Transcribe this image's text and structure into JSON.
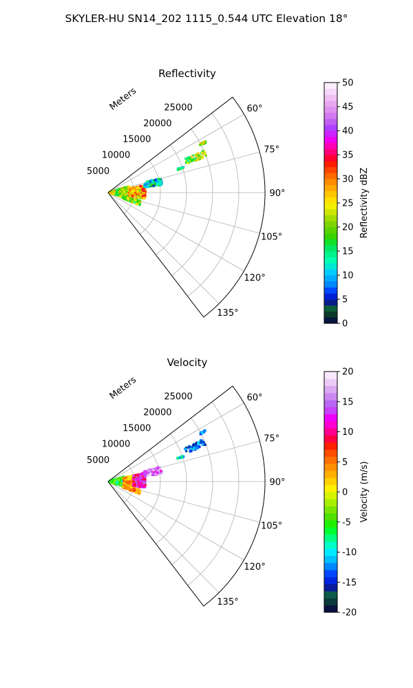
{
  "suptitle": "SKYLER-HU  SN14_202  1115_0.544 UTC Elevation 18°",
  "chart_data": [
    {
      "type": "heatmap",
      "projection": "polar-sector",
      "title": "Reflectivity",
      "range_label": "Meters",
      "theta_range_deg": [
        52.5,
        142.5
      ],
      "theta_ticks": [
        60,
        75,
        90,
        105,
        120,
        135
      ],
      "theta_tick_labels": [
        "60°",
        "75°",
        "90°",
        "105°",
        "120°",
        "135°"
      ],
      "r_range": [
        0,
        30000
      ],
      "r_ticks": [
        5000,
        10000,
        15000,
        20000,
        25000
      ],
      "r_tick_labels": [
        "5000",
        "10000",
        "15000",
        "20000",
        "25000"
      ],
      "grid": true,
      "colorbar": {
        "label": "Reflectivity dBZ",
        "min": 0,
        "max": 50,
        "ticks": [
          0,
          5,
          10,
          15,
          20,
          25,
          30,
          35,
          40,
          45,
          50
        ],
        "tick_labels": [
          "0",
          "5",
          "10",
          "15",
          "20",
          "25",
          "30",
          "35",
          "40",
          "45",
          "50"
        ],
        "colormap": "pyart_NWSRef"
      },
      "echo_regions": [
        {
          "theta_deg": [
            72,
            108
          ],
          "r": [
            300,
            4200
          ],
          "value": 22
        },
        {
          "theta_deg": [
            78,
            100
          ],
          "r": [
            4000,
            7200
          ],
          "value": 28
        },
        {
          "theta_deg": [
            74,
            82
          ],
          "r": [
            7000,
            10500
          ],
          "value": 12
        },
        {
          "theta_deg": [
            104,
            112
          ],
          "r": [
            3000,
            6500
          ],
          "value": 21
        },
        {
          "theta_deg": [
            66,
            70
          ],
          "r": [
            16000,
            20000
          ],
          "value": 20
        },
        {
          "theta_deg": [
            62,
            63
          ],
          "r": [
            19800,
            21000
          ],
          "value": 22
        },
        {
          "theta_deg": [
            71,
            72
          ],
          "r": [
            14000,
            15200
          ],
          "value": 14
        }
      ]
    },
    {
      "type": "heatmap",
      "projection": "polar-sector",
      "title": "Velocity",
      "range_label": "Meters",
      "theta_range_deg": [
        52.5,
        142.5
      ],
      "theta_ticks": [
        60,
        75,
        90,
        105,
        120,
        135
      ],
      "theta_tick_labels": [
        "60°",
        "75°",
        "90°",
        "105°",
        "120°",
        "135°"
      ],
      "r_range": [
        0,
        30000
      ],
      "r_ticks": [
        5000,
        10000,
        15000,
        20000,
        25000
      ],
      "r_tick_labels": [
        "5000",
        "10000",
        "15000",
        "20000",
        "25000"
      ],
      "grid": true,
      "colorbar": {
        "label": "Velocity (m/s)",
        "min": -20,
        "max": 20,
        "ticks": [
          -20,
          -15,
          -10,
          -5,
          0,
          5,
          10,
          15,
          20
        ],
        "tick_labels": [
          "-20",
          "-15",
          "-10",
          "-5",
          "0",
          "5",
          "10",
          "15",
          "20"
        ],
        "colormap": "pyart_BuDRd18"
      },
      "echo_regions": [
        {
          "theta_deg": [
            72,
            108
          ],
          "r": [
            300,
            3200
          ],
          "value": -6
        },
        {
          "theta_deg": [
            76,
            104
          ],
          "r": [
            3000,
            5000
          ],
          "value": 3
        },
        {
          "theta_deg": [
            76,
            100
          ],
          "r": [
            4800,
            7200
          ],
          "value": 11
        },
        {
          "theta_deg": [
            74,
            82
          ],
          "r": [
            7000,
            10500
          ],
          "value": 15
        },
        {
          "theta_deg": [
            104,
            112
          ],
          "r": [
            3000,
            6500
          ],
          "value": 4
        },
        {
          "theta_deg": [
            66,
            70
          ],
          "r": [
            16000,
            20000
          ],
          "value": -13
        },
        {
          "theta_deg": [
            62,
            63
          ],
          "r": [
            19800,
            21000
          ],
          "value": -12
        },
        {
          "theta_deg": [
            71,
            72
          ],
          "r": [
            14000,
            15200
          ],
          "value": -10
        }
      ]
    }
  ]
}
